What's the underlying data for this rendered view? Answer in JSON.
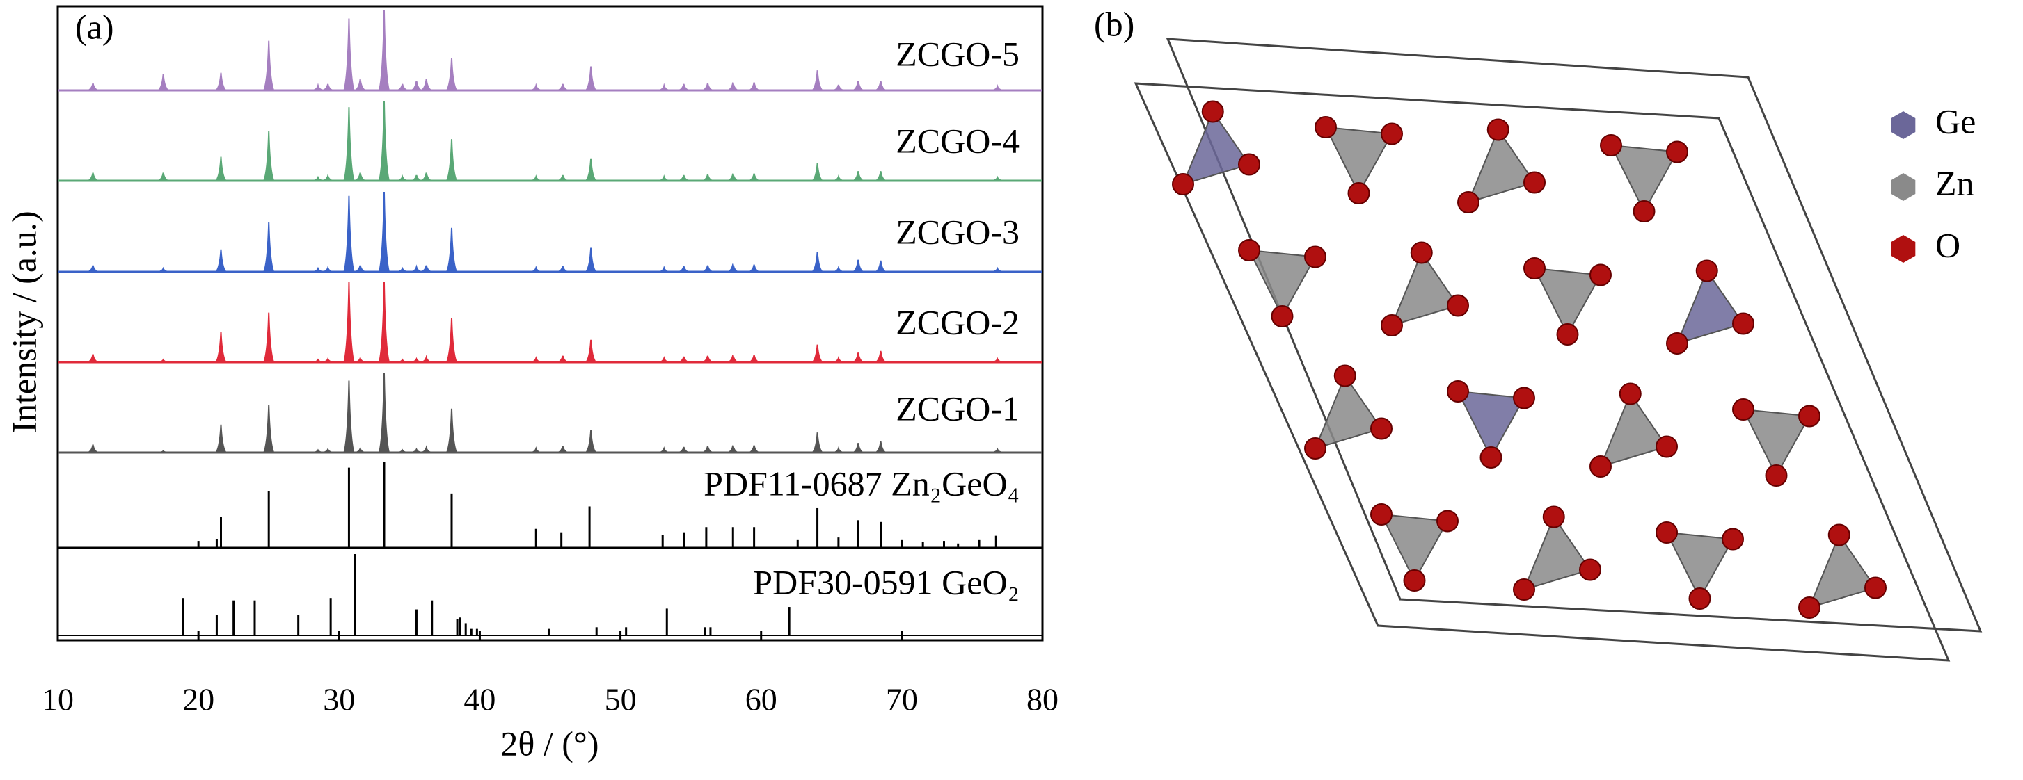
{
  "chart_data": {
    "type": "xrd",
    "panel_label": "(a)",
    "xlabel": "2θ / (°)",
    "ylabel": "Intensity / (a.u.)",
    "xlim": [
      10,
      80
    ],
    "xticks": [
      10,
      20,
      30,
      40,
      50,
      60,
      70,
      80
    ],
    "series": [
      {
        "name": "ZCGO-5",
        "color": "#a57fc0",
        "x": [
          12.5,
          17.5,
          21.6,
          25.0,
          28.5,
          29.2,
          30.7,
          31.5,
          33.2,
          34.5,
          35.5,
          36.2,
          38.0,
          44.0,
          45.9,
          47.9,
          53.1,
          54.5,
          56.2,
          58.0,
          59.5,
          64.0,
          65.5,
          66.9,
          68.5,
          76.8
        ],
        "values": [
          9,
          20,
          22,
          62,
          6,
          8,
          90,
          14,
          100,
          8,
          12,
          14,
          40,
          6,
          8,
          30,
          6,
          8,
          9,
          10,
          10,
          25,
          7,
          12,
          12,
          5
        ]
      },
      {
        "name": "ZCGO-4",
        "color": "#5aa876",
        "x": [
          12.5,
          17.5,
          21.6,
          25.0,
          28.5,
          29.2,
          30.7,
          31.5,
          33.2,
          34.5,
          35.5,
          36.2,
          38.0,
          44.0,
          45.9,
          47.9,
          53.1,
          54.5,
          56.2,
          58.0,
          59.5,
          64.0,
          65.5,
          66.9,
          68.5,
          76.8
        ],
        "values": [
          10,
          10,
          30,
          62,
          4,
          6,
          92,
          10,
          100,
          5,
          7,
          10,
          52,
          5,
          7,
          28,
          5,
          7,
          8,
          9,
          9,
          22,
          5,
          12,
          12,
          4
        ]
      },
      {
        "name": "ZCGO-3",
        "color": "#3a62c8",
        "x": [
          12.5,
          17.5,
          21.6,
          25.0,
          28.5,
          29.2,
          30.7,
          31.5,
          33.2,
          34.5,
          35.5,
          36.2,
          38.0,
          44.0,
          45.9,
          47.9,
          53.1,
          54.5,
          56.2,
          58.0,
          59.5,
          64.0,
          65.5,
          66.9,
          68.5,
          76.8
        ],
        "values": [
          8,
          4,
          28,
          62,
          4,
          5,
          95,
          8,
          100,
          4,
          6,
          8,
          55,
          5,
          7,
          30,
          5,
          7,
          8,
          10,
          9,
          25,
          5,
          15,
          14,
          4
        ]
      },
      {
        "name": "ZCGO-2",
        "color": "#e02a3a",
        "x": [
          12.5,
          17.5,
          21.6,
          25.0,
          28.5,
          29.2,
          30.7,
          31.5,
          33.2,
          34.5,
          35.5,
          36.2,
          38.0,
          44.0,
          45.9,
          47.9,
          53.1,
          54.5,
          56.2,
          58.0,
          59.5,
          64.0,
          65.5,
          66.9,
          68.5,
          76.8
        ],
        "values": [
          10,
          3,
          38,
          62,
          3,
          4,
          100,
          5,
          100,
          3,
          4,
          6,
          55,
          5,
          8,
          28,
          5,
          7,
          8,
          9,
          9,
          22,
          5,
          12,
          14,
          4
        ]
      },
      {
        "name": "ZCGO-1",
        "color": "#555555",
        "x": [
          12.5,
          17.5,
          21.6,
          25.0,
          28.5,
          29.2,
          30.7,
          31.5,
          33.2,
          34.5,
          35.5,
          36.2,
          38.0,
          44.0,
          45.9,
          47.9,
          53.1,
          54.5,
          56.2,
          58.0,
          59.5,
          64.0,
          65.5,
          66.9,
          68.5,
          76.8
        ],
        "values": [
          10,
          2,
          35,
          60,
          3,
          4,
          90,
          5,
          100,
          3,
          4,
          6,
          55,
          5,
          8,
          28,
          5,
          7,
          8,
          9,
          9,
          25,
          5,
          12,
          14,
          4
        ]
      }
    ],
    "references": [
      {
        "name": "PDF11-0687 Zn₂GeO₄",
        "color": "#000000",
        "x": [
          20.0,
          21.3,
          21.6,
          25.0,
          30.7,
          33.2,
          38.0,
          44.0,
          45.8,
          47.8,
          53.0,
          54.5,
          56.1,
          58.0,
          59.5,
          62.6,
          64.0,
          65.5,
          66.9,
          68.5,
          70.0,
          71.5,
          73.0,
          74.0,
          75.5,
          76.7
        ],
        "values": [
          8,
          10,
          36,
          66,
          93,
          100,
          63,
          22,
          18,
          48,
          15,
          18,
          24,
          24,
          24,
          9,
          46,
          12,
          32,
          30,
          9,
          7,
          8,
          5,
          9,
          14
        ]
      },
      {
        "name": "PDF30-0591 GeO₂",
        "color": "#000000",
        "x": [
          18.9,
          21.3,
          22.5,
          24.0,
          27.1,
          29.4,
          31.1,
          35.5,
          36.6,
          38.4,
          38.6,
          39.0,
          39.4,
          39.8,
          44.9,
          48.3,
          50.4,
          53.3,
          56.0,
          56.4,
          62.0
        ],
        "values": [
          46,
          25,
          43,
          43,
          25,
          46,
          100,
          32,
          43,
          20,
          22,
          15,
          8,
          8,
          8,
          10,
          10,
          33,
          10,
          10,
          35
        ]
      }
    ]
  },
  "structure": {
    "panel_label": "(b)",
    "legend": [
      {
        "name": "Ge",
        "color": "#6b6799"
      },
      {
        "name": "Zn",
        "color": "#8a8a8a"
      },
      {
        "name": "O",
        "color": "#b01010"
      }
    ]
  }
}
